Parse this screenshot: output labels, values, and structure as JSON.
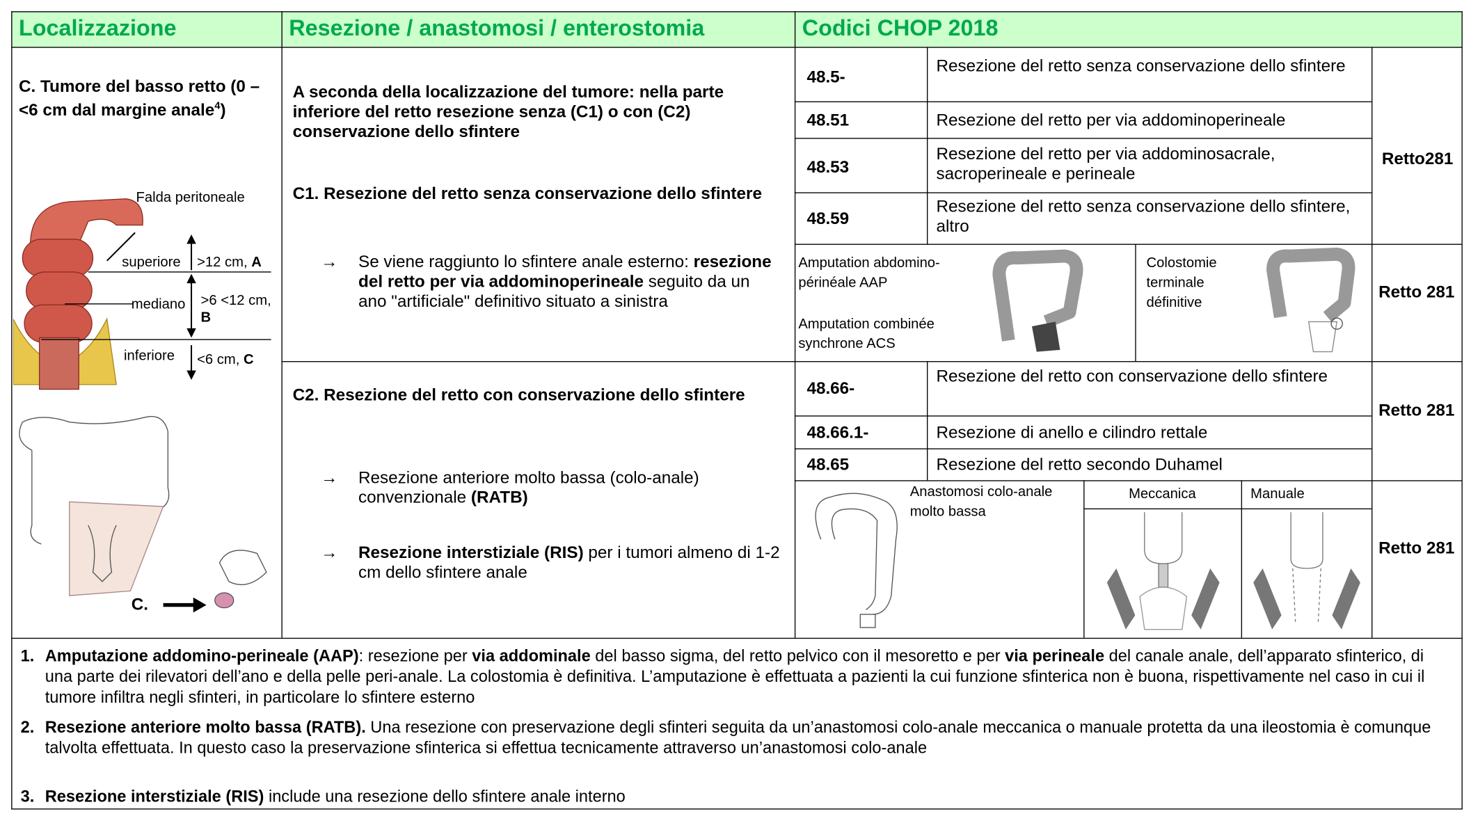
{
  "header": {
    "col1": "Localizzazione",
    "col2": "Resezione / anastomosi / enterostomia",
    "col3": "Codici CHOP 2018"
  },
  "location": {
    "title": "C. Tumore del basso retto (0 – <6 cm dal margine anale",
    "ref": "4",
    "title_end": ")",
    "figure": {
      "peritoneal_fold": "Falda peritoneale",
      "upper": "superiore",
      "upper_range": ">12 cm, ",
      "upper_letter": "A",
      "middle": "mediano",
      "middle_range": ">6 <12 cm, ",
      "middle_letter": "B",
      "lower": "inferiore",
      "lower_range": "<6 cm, ",
      "lower_letter": "C",
      "arrow_label": "C."
    }
  },
  "resection": {
    "intro": "A seconda della localizzazione del tumore: nella parte inferiore del retto resezione senza (C1) o con (C2) conservazione dello sfintere",
    "bullet_symbol": "→",
    "c1": {
      "title": "C1. Resezione del retto senza conservazione dello sfintere",
      "bullet": [
        "Se viene raggiunto lo sfintere anale esterno: ",
        "resezione del retto per via addominoperineale",
        " seguito da un ano \"artificiale\" definitivo situato a sinistra"
      ]
    },
    "c2": {
      "title": "C2. Resezione del retto con conservazione dello sfintere",
      "bullets": [
        [
          "Resezione anteriore molto bassa (colo-anale) convenzionale ",
          "(RATB)"
        ],
        [
          "Resezione interstiziale (RIS)",
          " per i tumori almeno di 1-2 cm dello sfintere anale"
        ]
      ]
    }
  },
  "codes": {
    "group1": {
      "rows": [
        [
          "48.5-",
          "Resezione del retto senza conservazione dello sfintere"
        ],
        [
          "48.51",
          "Resezione del retto per via addominoperineale"
        ],
        [
          "48.53",
          "Resezione del retto per via addominosacrale, sacroperineale e perineale"
        ],
        [
          "48.59",
          "Resezione del retto senza conservazione dello sfintere, altro"
        ]
      ],
      "organ": "Retto281"
    },
    "image1": {
      "left": [
        "Amputation abdomino-périnéale AAP",
        "Amputation combinée synchrone ACS"
      ],
      "right": "Colostomie terminale définitive",
      "organ": "Retto 281"
    },
    "group2": {
      "rows": [
        [
          "48.66-",
          "Resezione del retto con conservazione dello sfintere"
        ],
        [
          "48.66.1-",
          "Resezione di anello e cilindro rettale"
        ],
        [
          "48.65",
          "Resezione del retto secondo Duhamel"
        ]
      ],
      "organ": "Retto 281"
    },
    "image2": {
      "label": "Anastomosi colo-anale molto bassa",
      "mechanical": "Meccanica",
      "manual": "Manuale",
      "organ": "Retto 281"
    }
  },
  "footnotes": [
    {
      "number": "1.",
      "parts": [
        "Amputazione addomino-perineale (AAP)",
        ": resezione per ",
        "via addominale",
        " del basso sigma, del retto pelvico con il mesoretto e per ",
        "via perineale",
        " del canale anale, dell’apparato sfinterico, di una parte dei rilevatori dell’ano e della pelle peri-anale. La colostomia è definitiva. L’amputazione è effettuata a pazienti la cui funzione sfinterica non è buona, rispettivamente nel caso in cui il tumore infiltra negli sfinteri, in particolare lo sfintere esterno"
      ]
    },
    {
      "number": "2.",
      "parts": [
        "Resezione anteriore molto bassa (RATB).",
        " Una resezione con preservazione degli sfinteri seguita da un’anastomosi colo-anale meccanica o manuale protetta da una ileostomia è comunque talvolta effettuata. In questo caso la preservazione sfinterica si effettua tecnicamente attraverso un’anastomosi colo-anale"
      ]
    },
    {
      "number": "3.",
      "parts": [
        "Resezione interstiziale (RIS)",
        " include una resezione dello sfintere anale interno"
      ]
    }
  ]
}
